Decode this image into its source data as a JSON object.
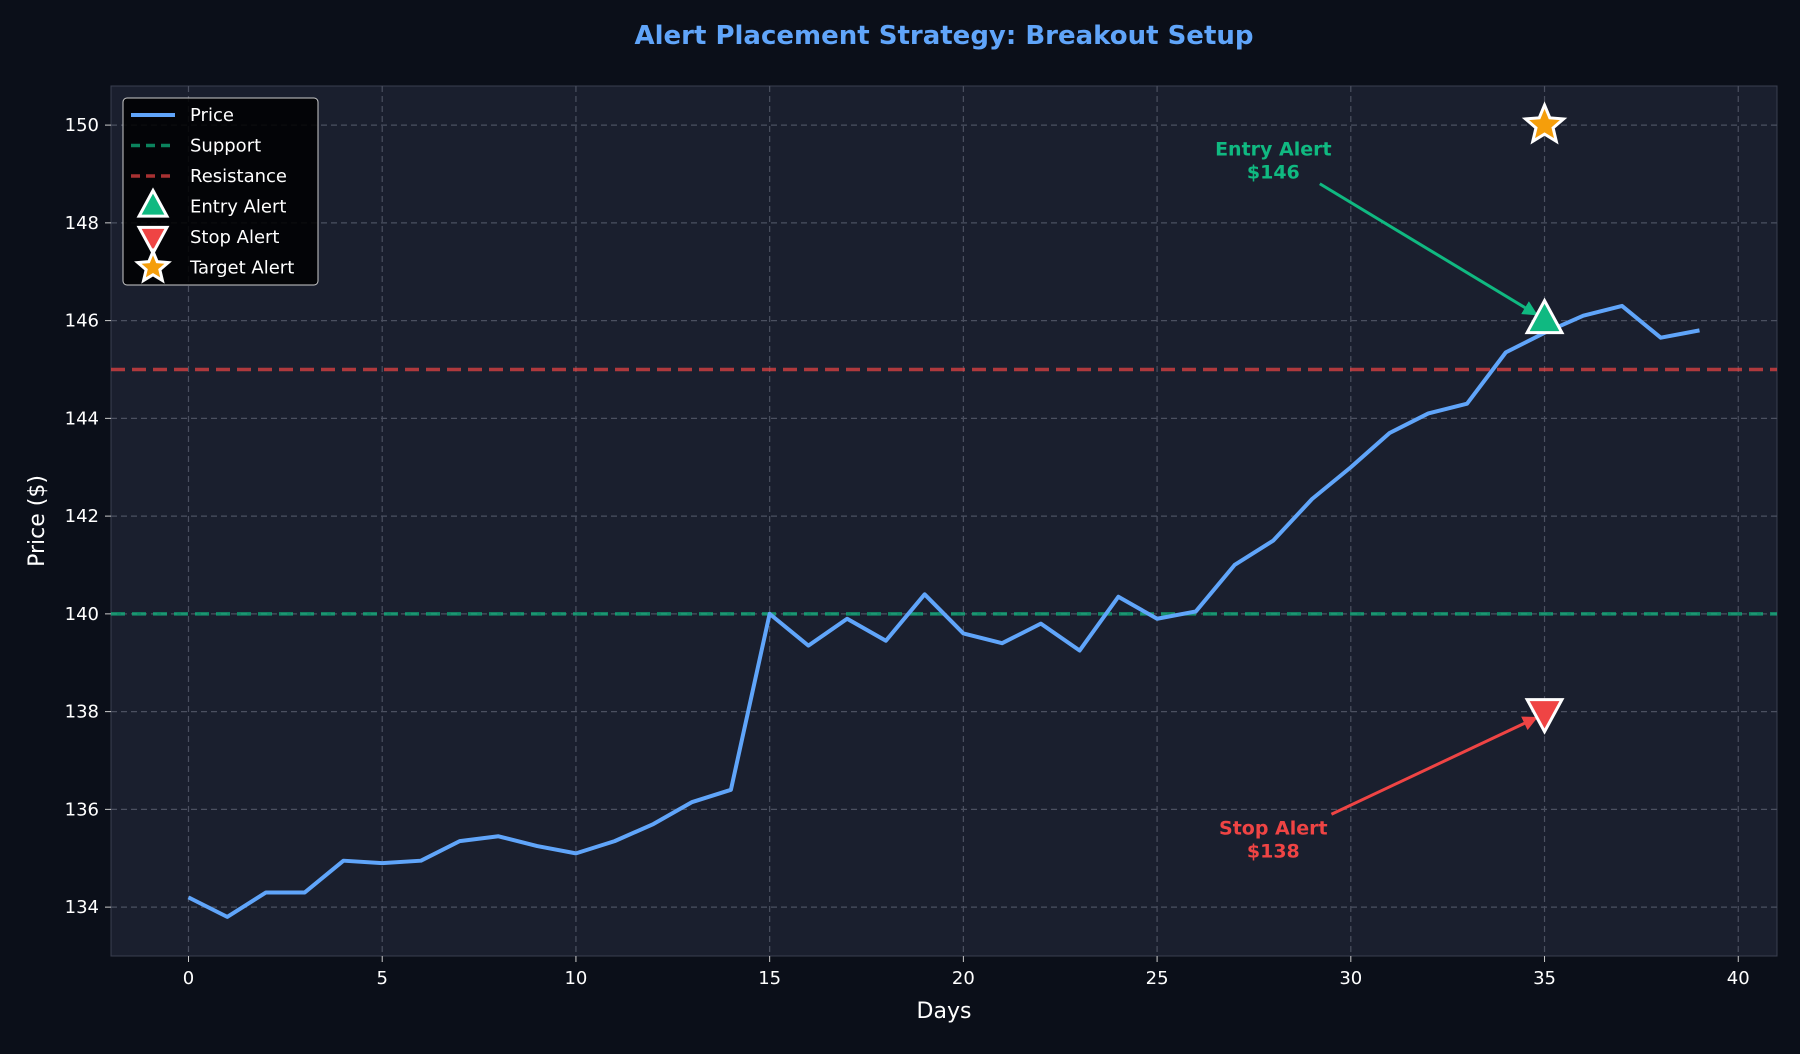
{
  "chart_data": {
    "type": "line",
    "title": "Alert Placement Strategy: Breakout Setup",
    "xlabel": "Days",
    "ylabel": "Price ($)",
    "xlim": [
      -2,
      41
    ],
    "ylim": [
      133,
      150.8
    ],
    "xticks": [
      0,
      5,
      10,
      15,
      20,
      25,
      30,
      35,
      40
    ],
    "yticks": [
      134,
      136,
      138,
      140,
      142,
      144,
      146,
      148,
      150
    ],
    "grid": true,
    "legend_position": "top-left",
    "series": [
      {
        "name": "Price",
        "color": "#60a5fa",
        "x": [
          0,
          1,
          2,
          3,
          4,
          5,
          6,
          7,
          8,
          9,
          10,
          11,
          12,
          13,
          14,
          15,
          16,
          17,
          18,
          19,
          20,
          21,
          22,
          23,
          24,
          25,
          26,
          27,
          28,
          29,
          30,
          31,
          32,
          33,
          34,
          35,
          36,
          37,
          38,
          39
        ],
        "y": [
          134.2,
          133.8,
          134.3,
          134.3,
          134.95,
          134.9,
          134.95,
          135.35,
          135.45,
          135.25,
          135.1,
          135.35,
          135.7,
          136.15,
          136.4,
          140.0,
          139.35,
          139.9,
          139.45,
          140.4,
          139.6,
          139.4,
          139.8,
          139.25,
          140.35,
          139.9,
          140.05,
          141.0,
          141.5,
          142.35,
          143.0,
          143.7,
          144.1,
          144.3,
          145.35,
          145.75,
          146.1,
          146.3,
          145.65,
          145.8
        ]
      }
    ],
    "hlines": [
      {
        "name": "Support",
        "y": 140,
        "color": "#10b981"
      },
      {
        "name": "Resistance",
        "y": 145,
        "color": "#ef4444"
      }
    ],
    "markers": [
      {
        "name": "Entry Alert",
        "x": 35,
        "y": 146,
        "shape": "triangle-up",
        "color": "#10b981"
      },
      {
        "name": "Stop Alert",
        "x": 35,
        "y": 138,
        "shape": "triangle-down",
        "color": "#ef4444"
      },
      {
        "name": "Target Alert",
        "x": 35,
        "y": 150,
        "shape": "star",
        "color": "#f59e0b"
      }
    ],
    "annotations": [
      {
        "line1": "Entry Alert",
        "line2": "$146",
        "text_x": 28,
        "text_y": 149.3,
        "arrow_from_x": 29.2,
        "arrow_from_y": 148.8,
        "arrow_to_x": 35,
        "arrow_to_y": 146,
        "color": "#10b981"
      },
      {
        "line1": "Stop Alert",
        "line2": "$138",
        "text_x": 28,
        "text_y": 135.4,
        "arrow_from_x": 29.5,
        "arrow_from_y": 135.9,
        "arrow_to_x": 35,
        "arrow_to_y": 138,
        "color": "#ef4444"
      }
    ],
    "colors": {
      "background": "#0b0f19",
      "plot_background": "#1a1f2e",
      "title": "#60a5fa",
      "grid": "#4b5060",
      "text": "#ffffff"
    }
  }
}
